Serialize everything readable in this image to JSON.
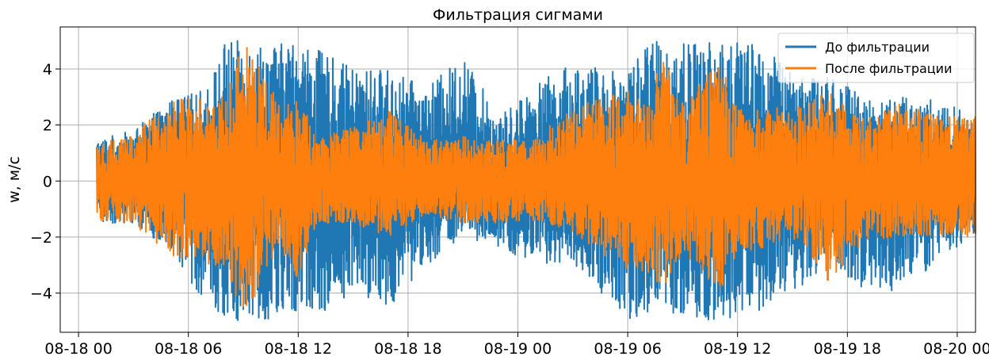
{
  "chart_data": {
    "type": "line",
    "title": "Фильтрация сигмами",
    "xlabel": "",
    "ylabel": "w, м/с",
    "x_start": "2024-08-18 00:00",
    "x_end": "2024-08-20 01:00",
    "xlim": [
      "08-17 23:00",
      "08-20 01:00"
    ],
    "ylim": [
      -5.4,
      5.5
    ],
    "x_ticks": [
      "08-18 00",
      "08-18 06",
      "08-18 12",
      "08-18 18",
      "08-19 00",
      "08-19 06",
      "08-19 12",
      "08-19 18",
      "08-20 00"
    ],
    "y_ticks": [
      -4,
      -2,
      0,
      2,
      4
    ],
    "y_tick_labels": [
      "−4",
      "−2",
      "0",
      "2",
      "4"
    ],
    "grid": true,
    "legend_position": "top-right",
    "time_series_start": "08-18 01:00",
    "time_series_end": "08-20 01:00",
    "series": [
      {
        "name": "До фильтрации",
        "color": "#1f77b4",
        "envelope": [
          {
            "x": "08-18 01",
            "y_min": -1.5,
            "y_max": 1.5
          },
          {
            "x": "08-18 03",
            "y_min": -1.5,
            "y_max": 1.8
          },
          {
            "x": "08-18 05",
            "y_min": -2.6,
            "y_max": 2.9
          },
          {
            "x": "08-18 07",
            "y_min": -4.4,
            "y_max": 3.3
          },
          {
            "x": "08-18 08",
            "y_min": -4.9,
            "y_max": 5.0
          },
          {
            "x": "08-18 09",
            "y_min": -5.0,
            "y_max": 5.0
          },
          {
            "x": "08-18 11",
            "y_min": -4.9,
            "y_max": 4.9
          },
          {
            "x": "08-18 12",
            "y_min": -4.7,
            "y_max": 5.1
          },
          {
            "x": "08-18 13",
            "y_min": -4.8,
            "y_max": 4.7
          },
          {
            "x": "08-18 15",
            "y_min": -4.0,
            "y_max": 4.0
          },
          {
            "x": "08-18 17",
            "y_min": -4.5,
            "y_max": 4.0
          },
          {
            "x": "08-18 19",
            "y_min": -3.0,
            "y_max": 3.3
          },
          {
            "x": "08-18 21",
            "y_min": -2.0,
            "y_max": 4.5
          },
          {
            "x": "08-18 23",
            "y_min": -2.5,
            "y_max": 2.3
          },
          {
            "x": "08-19 01",
            "y_min": -3.0,
            "y_max": 3.5
          },
          {
            "x": "08-19 03",
            "y_min": -2.9,
            "y_max": 4.2
          },
          {
            "x": "08-19 05",
            "y_min": -4.3,
            "y_max": 4.0
          },
          {
            "x": "08-19 06",
            "y_min": -4.9,
            "y_max": 4.1
          },
          {
            "x": "08-19 07",
            "y_min": -4.9,
            "y_max": 5.0
          },
          {
            "x": "08-19 09",
            "y_min": -5.0,
            "y_max": 5.0
          },
          {
            "x": "08-19 11",
            "y_min": -5.0,
            "y_max": 5.0
          },
          {
            "x": "08-19 12",
            "y_min": -4.9,
            "y_max": 5.0
          },
          {
            "x": "08-19 13",
            "y_min": -4.9,
            "y_max": 4.9
          },
          {
            "x": "08-19 15",
            "y_min": -4.0,
            "y_max": 4.0
          },
          {
            "x": "08-19 17",
            "y_min": -3.0,
            "y_max": 3.8
          },
          {
            "x": "08-19 19",
            "y_min": -3.9,
            "y_max": 3.0
          },
          {
            "x": "08-19 21",
            "y_min": -4.0,
            "y_max": 3.0
          },
          {
            "x": "08-19 23",
            "y_min": -2.8,
            "y_max": 2.9
          },
          {
            "x": "08-20 01",
            "y_min": -2.0,
            "y_max": 2.3
          }
        ]
      },
      {
        "name": "После фильтрации",
        "color": "#ff7f0e",
        "envelope": [
          {
            "x": "08-18 01",
            "y_min": -1.4,
            "y_max": 1.4
          },
          {
            "x": "08-18 03",
            "y_min": -1.5,
            "y_max": 1.7
          },
          {
            "x": "08-18 05",
            "y_min": -2.8,
            "y_max": 2.9
          },
          {
            "x": "08-18 07",
            "y_min": -3.0,
            "y_max": 3.0
          },
          {
            "x": "08-18 08",
            "y_min": -3.0,
            "y_max": 3.2
          },
          {
            "x": "08-18 09",
            "y_min": -5.0,
            "y_max": 5.0
          },
          {
            "x": "08-18 11",
            "y_min": -2.4,
            "y_max": 2.8
          },
          {
            "x": "08-18 12",
            "y_min": -3.5,
            "y_max": 3.3
          },
          {
            "x": "08-18 13",
            "y_min": -1.5,
            "y_max": 1.5
          },
          {
            "x": "08-18 15",
            "y_min": -1.5,
            "y_max": 2.0
          },
          {
            "x": "08-18 17",
            "y_min": -2.0,
            "y_max": 2.5
          },
          {
            "x": "08-18 19",
            "y_min": -1.2,
            "y_max": 1.5
          },
          {
            "x": "08-18 21",
            "y_min": -1.5,
            "y_max": 1.6
          },
          {
            "x": "08-18 23",
            "y_min": -1.5,
            "y_max": 1.5
          },
          {
            "x": "08-19 01",
            "y_min": -1.4,
            "y_max": 1.6
          },
          {
            "x": "08-19 03",
            "y_min": -1.8,
            "y_max": 2.6
          },
          {
            "x": "08-19 05",
            "y_min": -2.8,
            "y_max": 3.1
          },
          {
            "x": "08-19 06",
            "y_min": -3.2,
            "y_max": 3.2
          },
          {
            "x": "08-19 07",
            "y_min": -3.3,
            "y_max": 3.3
          },
          {
            "x": "08-19 08",
            "y_min": -3.8,
            "y_max": 4.4
          },
          {
            "x": "08-19 09",
            "y_min": -2.6,
            "y_max": 2.9
          },
          {
            "x": "08-19 11",
            "y_min": -4.0,
            "y_max": 4.4
          },
          {
            "x": "08-19 12",
            "y_min": -2.5,
            "y_max": 2.6
          },
          {
            "x": "08-19 13",
            "y_min": -2.5,
            "y_max": 2.6
          },
          {
            "x": "08-19 15",
            "y_min": -2.0,
            "y_max": 2.7
          },
          {
            "x": "08-19 17",
            "y_min": -3.6,
            "y_max": 3.2
          },
          {
            "x": "08-19 19",
            "y_min": -2.1,
            "y_max": 2.2
          },
          {
            "x": "08-19 21",
            "y_min": -2.0,
            "y_max": 2.8
          },
          {
            "x": "08-19 23",
            "y_min": -2.0,
            "y_max": 2.3
          },
          {
            "x": "08-20 01",
            "y_min": -2.0,
            "y_max": 2.3
          }
        ]
      }
    ]
  }
}
